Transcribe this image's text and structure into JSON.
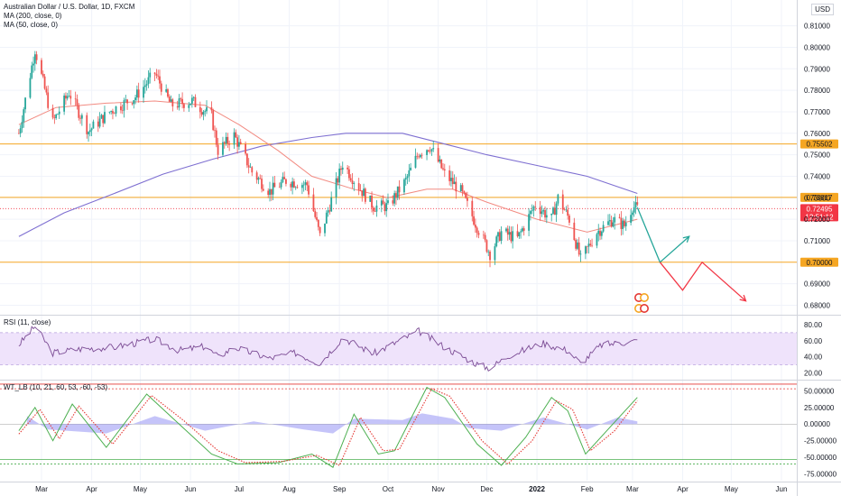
{
  "header": {
    "symbol_title": "Australian Dollar / U.S. Dollar, 1D, FXCM",
    "ma200_label": "MA (200, close, 0)",
    "ma50_label": "MA (50, close, 0)",
    "currency": "USD"
  },
  "colors": {
    "up_candle": "#26a69a",
    "down_candle": "#ef5350",
    "ma200": "#7e6fd1",
    "ma50": "#f28b82",
    "support_line": "#f5a623",
    "rsi_line": "#7b4b94",
    "rsi_band": "#efe3fb",
    "wt1": "#4caf50",
    "wt2": "#e53935",
    "wt_hist": "#9e9cf5",
    "projection_up": "#26a69a",
    "projection_down": "#f23645",
    "price_tag": "#f23645"
  },
  "chart_data": [
    {
      "type": "candlestick",
      "title": "Australian Dollar / U.S. Dollar, 1D, FXCM",
      "x_tick_labels": [
        "Mar",
        "Apr",
        "May",
        "Jun",
        "Jul",
        "Aug",
        "Sep",
        "Oct",
        "Nov",
        "Dec",
        "2022",
        "Feb",
        "Mar",
        "Apr",
        "May",
        "Jun"
      ],
      "y_tick_labels": [
        "0.81000",
        "0.80000",
        "0.79000",
        "0.78000",
        "0.77000",
        "0.76000",
        "0.75000",
        "0.74000",
        "0.73000",
        "0.72000",
        "0.71000",
        "0.69000",
        "0.68000"
      ],
      "ylim": [
        0.676,
        0.822
      ],
      "close_path": [
        [
          "2021-02-15",
          0.76
        ],
        [
          "2021-02-25",
          0.799
        ],
        [
          "2021-03-08",
          0.765
        ],
        [
          "2021-03-18",
          0.779
        ],
        [
          "2021-03-30",
          0.761
        ],
        [
          "2021-04-12",
          0.77
        ],
        [
          "2021-04-28",
          0.777
        ],
        [
          "2021-05-10",
          0.788
        ],
        [
          "2021-05-20",
          0.773
        ],
        [
          "2021-06-02",
          0.775
        ],
        [
          "2021-06-14",
          0.768
        ],
        [
          "2021-06-18",
          0.752
        ],
        [
          "2021-06-28",
          0.759
        ],
        [
          "2021-07-09",
          0.742
        ],
        [
          "2021-07-20",
          0.733
        ],
        [
          "2021-07-30",
          0.738
        ],
        [
          "2021-08-12",
          0.736
        ],
        [
          "2021-08-20",
          0.712
        ],
        [
          "2021-09-03",
          0.746
        ],
        [
          "2021-09-13",
          0.735
        ],
        [
          "2021-09-22",
          0.726
        ],
        [
          "2021-10-01",
          0.726
        ],
        [
          "2021-10-12",
          0.738
        ],
        [
          "2021-10-20",
          0.751
        ],
        [
          "2021-10-27",
          0.754
        ],
        [
          "2021-11-05",
          0.741
        ],
        [
          "2021-11-15",
          0.733
        ],
        [
          "2021-11-26",
          0.715
        ],
        [
          "2021-12-03",
          0.704
        ],
        [
          "2021-12-10",
          0.714
        ],
        [
          "2021-12-20",
          0.711
        ],
        [
          "2021-12-31",
          0.727
        ],
        [
          "2022-01-10",
          0.72
        ],
        [
          "2022-01-14",
          0.73
        ],
        [
          "2022-01-21",
          0.72
        ],
        [
          "2022-01-28",
          0.701
        ],
        [
          "2022-02-07",
          0.714
        ],
        [
          "2022-02-17",
          0.72
        ],
        [
          "2022-02-24",
          0.717
        ],
        [
          "2022-03-01",
          0.726
        ],
        [
          "2022-03-04",
          0.725
        ]
      ],
      "series": [
        {
          "name": "MA (200, close, 0)",
          "points": [
            [
              "2021-02-15",
              0.712
            ],
            [
              "2021-03-15",
              0.723
            ],
            [
              "2021-04-15",
              0.732
            ],
            [
              "2021-05-15",
              0.741
            ],
            [
              "2021-06-15",
              0.748
            ],
            [
              "2021-07-15",
              0.754
            ],
            [
              "2021-08-15",
              0.758
            ],
            [
              "2021-09-05",
              0.76
            ],
            [
              "2021-10-10",
              0.76
            ],
            [
              "2021-11-05",
              0.755
            ],
            [
              "2021-12-01",
              0.75
            ],
            [
              "2022-01-01",
              0.745
            ],
            [
              "2022-02-01",
              0.74
            ],
            [
              "2022-03-04",
              0.732
            ]
          ]
        },
        {
          "name": "MA (50, close, 0)",
          "points": [
            [
              "2021-02-15",
              0.764
            ],
            [
              "2021-03-10",
              0.772
            ],
            [
              "2021-04-10",
              0.774
            ],
            [
              "2021-05-10",
              0.775
            ],
            [
              "2021-06-10",
              0.773
            ],
            [
              "2021-07-01",
              0.764
            ],
            [
              "2021-07-25",
              0.752
            ],
            [
              "2021-08-15",
              0.74
            ],
            [
              "2021-09-10",
              0.734
            ],
            [
              "2021-10-01",
              0.73
            ],
            [
              "2021-10-25",
              0.734
            ],
            [
              "2021-11-10",
              0.734
            ],
            [
              "2021-12-01",
              0.728
            ],
            [
              "2022-01-01",
              0.72
            ],
            [
              "2022-02-01",
              0.714
            ],
            [
              "2022-03-04",
              0.72
            ]
          ]
        }
      ],
      "horizontal_levels": [
        {
          "value": 0.75502,
          "label": "0.75502"
        },
        {
          "value": 0.73017,
          "label": "0.73017"
        },
        {
          "value": 0.7,
          "label": "0.70000"
        }
      ],
      "last_price": {
        "label": "0.72495",
        "countdown": "12:51:12",
        "value": 0.72495
      },
      "projection_up": [
        [
          "2022-03-04",
          0.7255
        ],
        [
          "2022-03-18",
          0.7
        ],
        [
          "2022-04-05",
          0.712
        ]
      ],
      "projection_down": [
        [
          "2022-03-18",
          0.7
        ],
        [
          "2022-04-01",
          0.687
        ],
        [
          "2022-04-13",
          0.7
        ],
        [
          "2022-05-10",
          0.682
        ]
      ]
    },
    {
      "type": "line",
      "title": "RSI (11, close)",
      "y_tick_labels": [
        "80.00",
        "60.00",
        "40.00",
        "20.00"
      ],
      "ylim": [
        14,
        90
      ],
      "band": [
        30,
        70
      ],
      "values_path": [
        [
          "2021-02-15",
          55
        ],
        [
          "2021-02-25",
          78
        ],
        [
          "2021-03-08",
          45
        ],
        [
          "2021-03-25",
          50
        ],
        [
          "2021-04-15",
          52
        ],
        [
          "2021-05-10",
          62
        ],
        [
          "2021-05-25",
          48
        ],
        [
          "2021-06-10",
          53
        ],
        [
          "2021-06-18",
          40
        ],
        [
          "2021-06-28",
          52
        ],
        [
          "2021-07-20",
          38
        ],
        [
          "2021-08-05",
          45
        ],
        [
          "2021-08-20",
          32
        ],
        [
          "2021-09-03",
          64
        ],
        [
          "2021-09-22",
          44
        ],
        [
          "2021-10-20",
          72
        ],
        [
          "2021-11-05",
          52
        ],
        [
          "2021-11-26",
          30
        ],
        [
          "2021-12-03",
          26
        ],
        [
          "2021-12-15",
          42
        ],
        [
          "2022-01-05",
          57
        ],
        [
          "2022-01-20",
          48
        ],
        [
          "2022-01-28",
          32
        ],
        [
          "2022-02-10",
          55
        ],
        [
          "2022-02-24",
          58
        ],
        [
          "2022-03-04",
          60
        ]
      ]
    },
    {
      "type": "line",
      "title": "WT_LB (10, 21, 60, 53, -60, -53)",
      "y_tick_labels": [
        "50.00000",
        "25.00000",
        "0.00000",
        "-25.00000",
        "-50.00000",
        "-75.00000"
      ],
      "ylim": [
        -85,
        64
      ],
      "levels": [
        60,
        53,
        -53,
        -60
      ],
      "series": [
        {
          "name": "WT1",
          "points": [
            [
              "2021-02-15",
              -10
            ],
            [
              "2021-02-25",
              25
            ],
            [
              "2021-03-08",
              -25
            ],
            [
              "2021-03-20",
              30
            ],
            [
              "2021-04-10",
              -35
            ],
            [
              "2021-05-05",
              45
            ],
            [
              "2021-05-25",
              0
            ],
            [
              "2021-06-14",
              -45
            ],
            [
              "2021-06-30",
              -60
            ],
            [
              "2021-07-25",
              -58
            ],
            [
              "2021-08-15",
              -45
            ],
            [
              "2021-08-28",
              -65
            ],
            [
              "2021-09-10",
              15
            ],
            [
              "2021-09-25",
              -45
            ],
            [
              "2021-10-05",
              -40
            ],
            [
              "2021-10-25",
              55
            ],
            [
              "2021-11-05",
              40
            ],
            [
              "2021-11-25",
              -30
            ],
            [
              "2021-12-10",
              -62
            ],
            [
              "2021-12-25",
              -20
            ],
            [
              "2022-01-10",
              40
            ],
            [
              "2022-01-20",
              20
            ],
            [
              "2022-01-31",
              -45
            ],
            [
              "2022-02-15",
              -5
            ],
            [
              "2022-03-04",
              40
            ]
          ]
        },
        {
          "name": "WT2",
          "points": [
            [
              "2021-02-15",
              -15
            ],
            [
              "2021-02-28",
              22
            ],
            [
              "2021-03-12",
              -22
            ],
            [
              "2021-03-24",
              27
            ],
            [
              "2021-04-14",
              -30
            ],
            [
              "2021-05-08",
              43
            ],
            [
              "2021-05-28",
              5
            ],
            [
              "2021-06-18",
              -40
            ],
            [
              "2021-07-05",
              -58
            ],
            [
              "2021-07-28",
              -56
            ],
            [
              "2021-08-18",
              -47
            ],
            [
              "2021-09-01",
              -62
            ],
            [
              "2021-09-14",
              10
            ],
            [
              "2021-09-28",
              -40
            ],
            [
              "2021-10-08",
              -38
            ],
            [
              "2021-10-28",
              53
            ],
            [
              "2021-11-08",
              42
            ],
            [
              "2021-11-28",
              -25
            ],
            [
              "2021-12-14",
              -60
            ],
            [
              "2021-12-29",
              -25
            ],
            [
              "2022-01-13",
              35
            ],
            [
              "2022-01-23",
              22
            ],
            [
              "2022-02-03",
              -40
            ],
            [
              "2022-02-18",
              -10
            ],
            [
              "2022-03-04",
              35
            ]
          ]
        }
      ],
      "histogram": [
        [
          "2021-02-20",
          12
        ],
        [
          "2021-03-05",
          -8
        ],
        [
          "2021-04-10",
          -14
        ],
        [
          "2021-05-10",
          12
        ],
        [
          "2021-06-10",
          -10
        ],
        [
          "2021-07-10",
          4
        ],
        [
          "2021-08-10",
          -8
        ],
        [
          "2021-08-28",
          -14
        ],
        [
          "2021-09-10",
          8
        ],
        [
          "2021-10-10",
          6
        ],
        [
          "2021-10-22",
          16
        ],
        [
          "2021-11-10",
          8
        ],
        [
          "2021-11-20",
          -6
        ],
        [
          "2021-12-10",
          -10
        ],
        [
          "2022-01-05",
          10
        ],
        [
          "2022-02-01",
          -8
        ],
        [
          "2022-02-20",
          10
        ],
        [
          "2022-03-04",
          4
        ]
      ]
    }
  ]
}
